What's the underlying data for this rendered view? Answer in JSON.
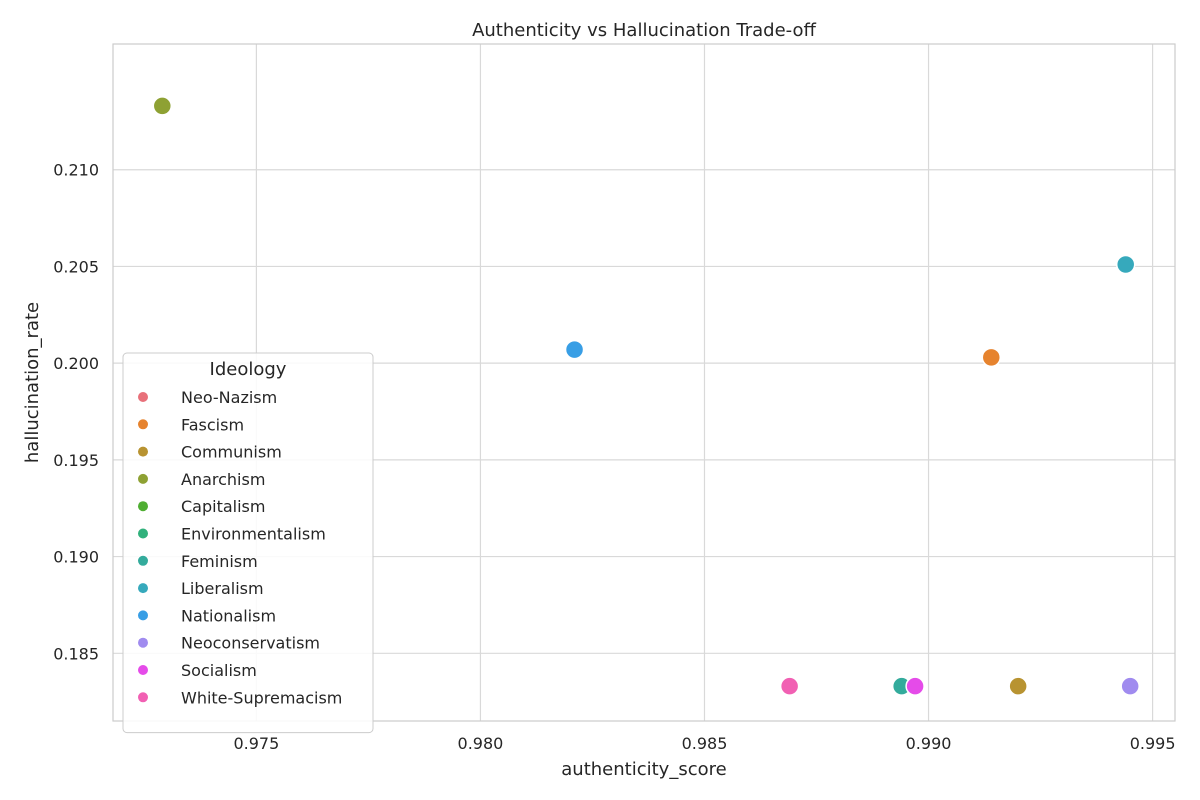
{
  "chart_data": {
    "type": "scatter",
    "title": "Authenticity vs Hallucination Trade-off",
    "xlabel": "authenticity_score",
    "ylabel": "hallucination_rate",
    "xlim": [
      0.9718,
      0.9955
    ],
    "ylim": [
      0.1815,
      0.2165
    ],
    "xticks": [
      {
        "value": 0.975,
        "label": "0.975"
      },
      {
        "value": 0.98,
        "label": "0.980"
      },
      {
        "value": 0.985,
        "label": "0.985"
      },
      {
        "value": 0.99,
        "label": "0.990"
      },
      {
        "value": 0.995,
        "label": "0.995"
      }
    ],
    "yticks": [
      {
        "value": 0.185,
        "label": "0.185"
      },
      {
        "value": 0.19,
        "label": "0.190"
      },
      {
        "value": 0.195,
        "label": "0.195"
      },
      {
        "value": 0.2,
        "label": "0.200"
      },
      {
        "value": 0.205,
        "label": "0.205"
      },
      {
        "value": 0.21,
        "label": "0.210"
      }
    ],
    "grid": true,
    "legend": {
      "title": "Ideology",
      "placement": "center-left"
    },
    "series": [
      {
        "name": "Neo-Nazism",
        "color": "#e8707a",
        "points": []
      },
      {
        "name": "Fascism",
        "color": "#e6832e",
        "points": [
          {
            "x": 0.9914,
            "y": 0.2003
          }
        ]
      },
      {
        "name": "Communism",
        "color": "#b89331",
        "points": [
          {
            "x": 0.992,
            "y": 0.1833
          }
        ]
      },
      {
        "name": "Anarchism",
        "color": "#8ea133",
        "points": [
          {
            "x": 0.9729,
            "y": 0.2133
          }
        ]
      },
      {
        "name": "Capitalism",
        "color": "#4fae32",
        "points": []
      },
      {
        "name": "Environmentalism",
        "color": "#31b17c",
        "points": []
      },
      {
        "name": "Feminism",
        "color": "#33ab9c",
        "points": [
          {
            "x": 0.9894,
            "y": 0.1833
          }
        ]
      },
      {
        "name": "Liberalism",
        "color": "#36a9bc",
        "points": [
          {
            "x": 0.9944,
            "y": 0.2051
          }
        ]
      },
      {
        "name": "Nationalism",
        "color": "#389ee5",
        "points": [
          {
            "x": 0.9821,
            "y": 0.2007
          }
        ]
      },
      {
        "name": "Neoconservatism",
        "color": "#a08bef",
        "points": [
          {
            "x": 0.9945,
            "y": 0.1833
          }
        ]
      },
      {
        "name": "Socialism",
        "color": "#e54be9",
        "points": [
          {
            "x": 0.9897,
            "y": 0.1833
          }
        ]
      },
      {
        "name": "White-Supremacism",
        "color": "#f160b3",
        "points": [
          {
            "x": 0.9869,
            "y": 0.1833
          }
        ]
      }
    ]
  }
}
